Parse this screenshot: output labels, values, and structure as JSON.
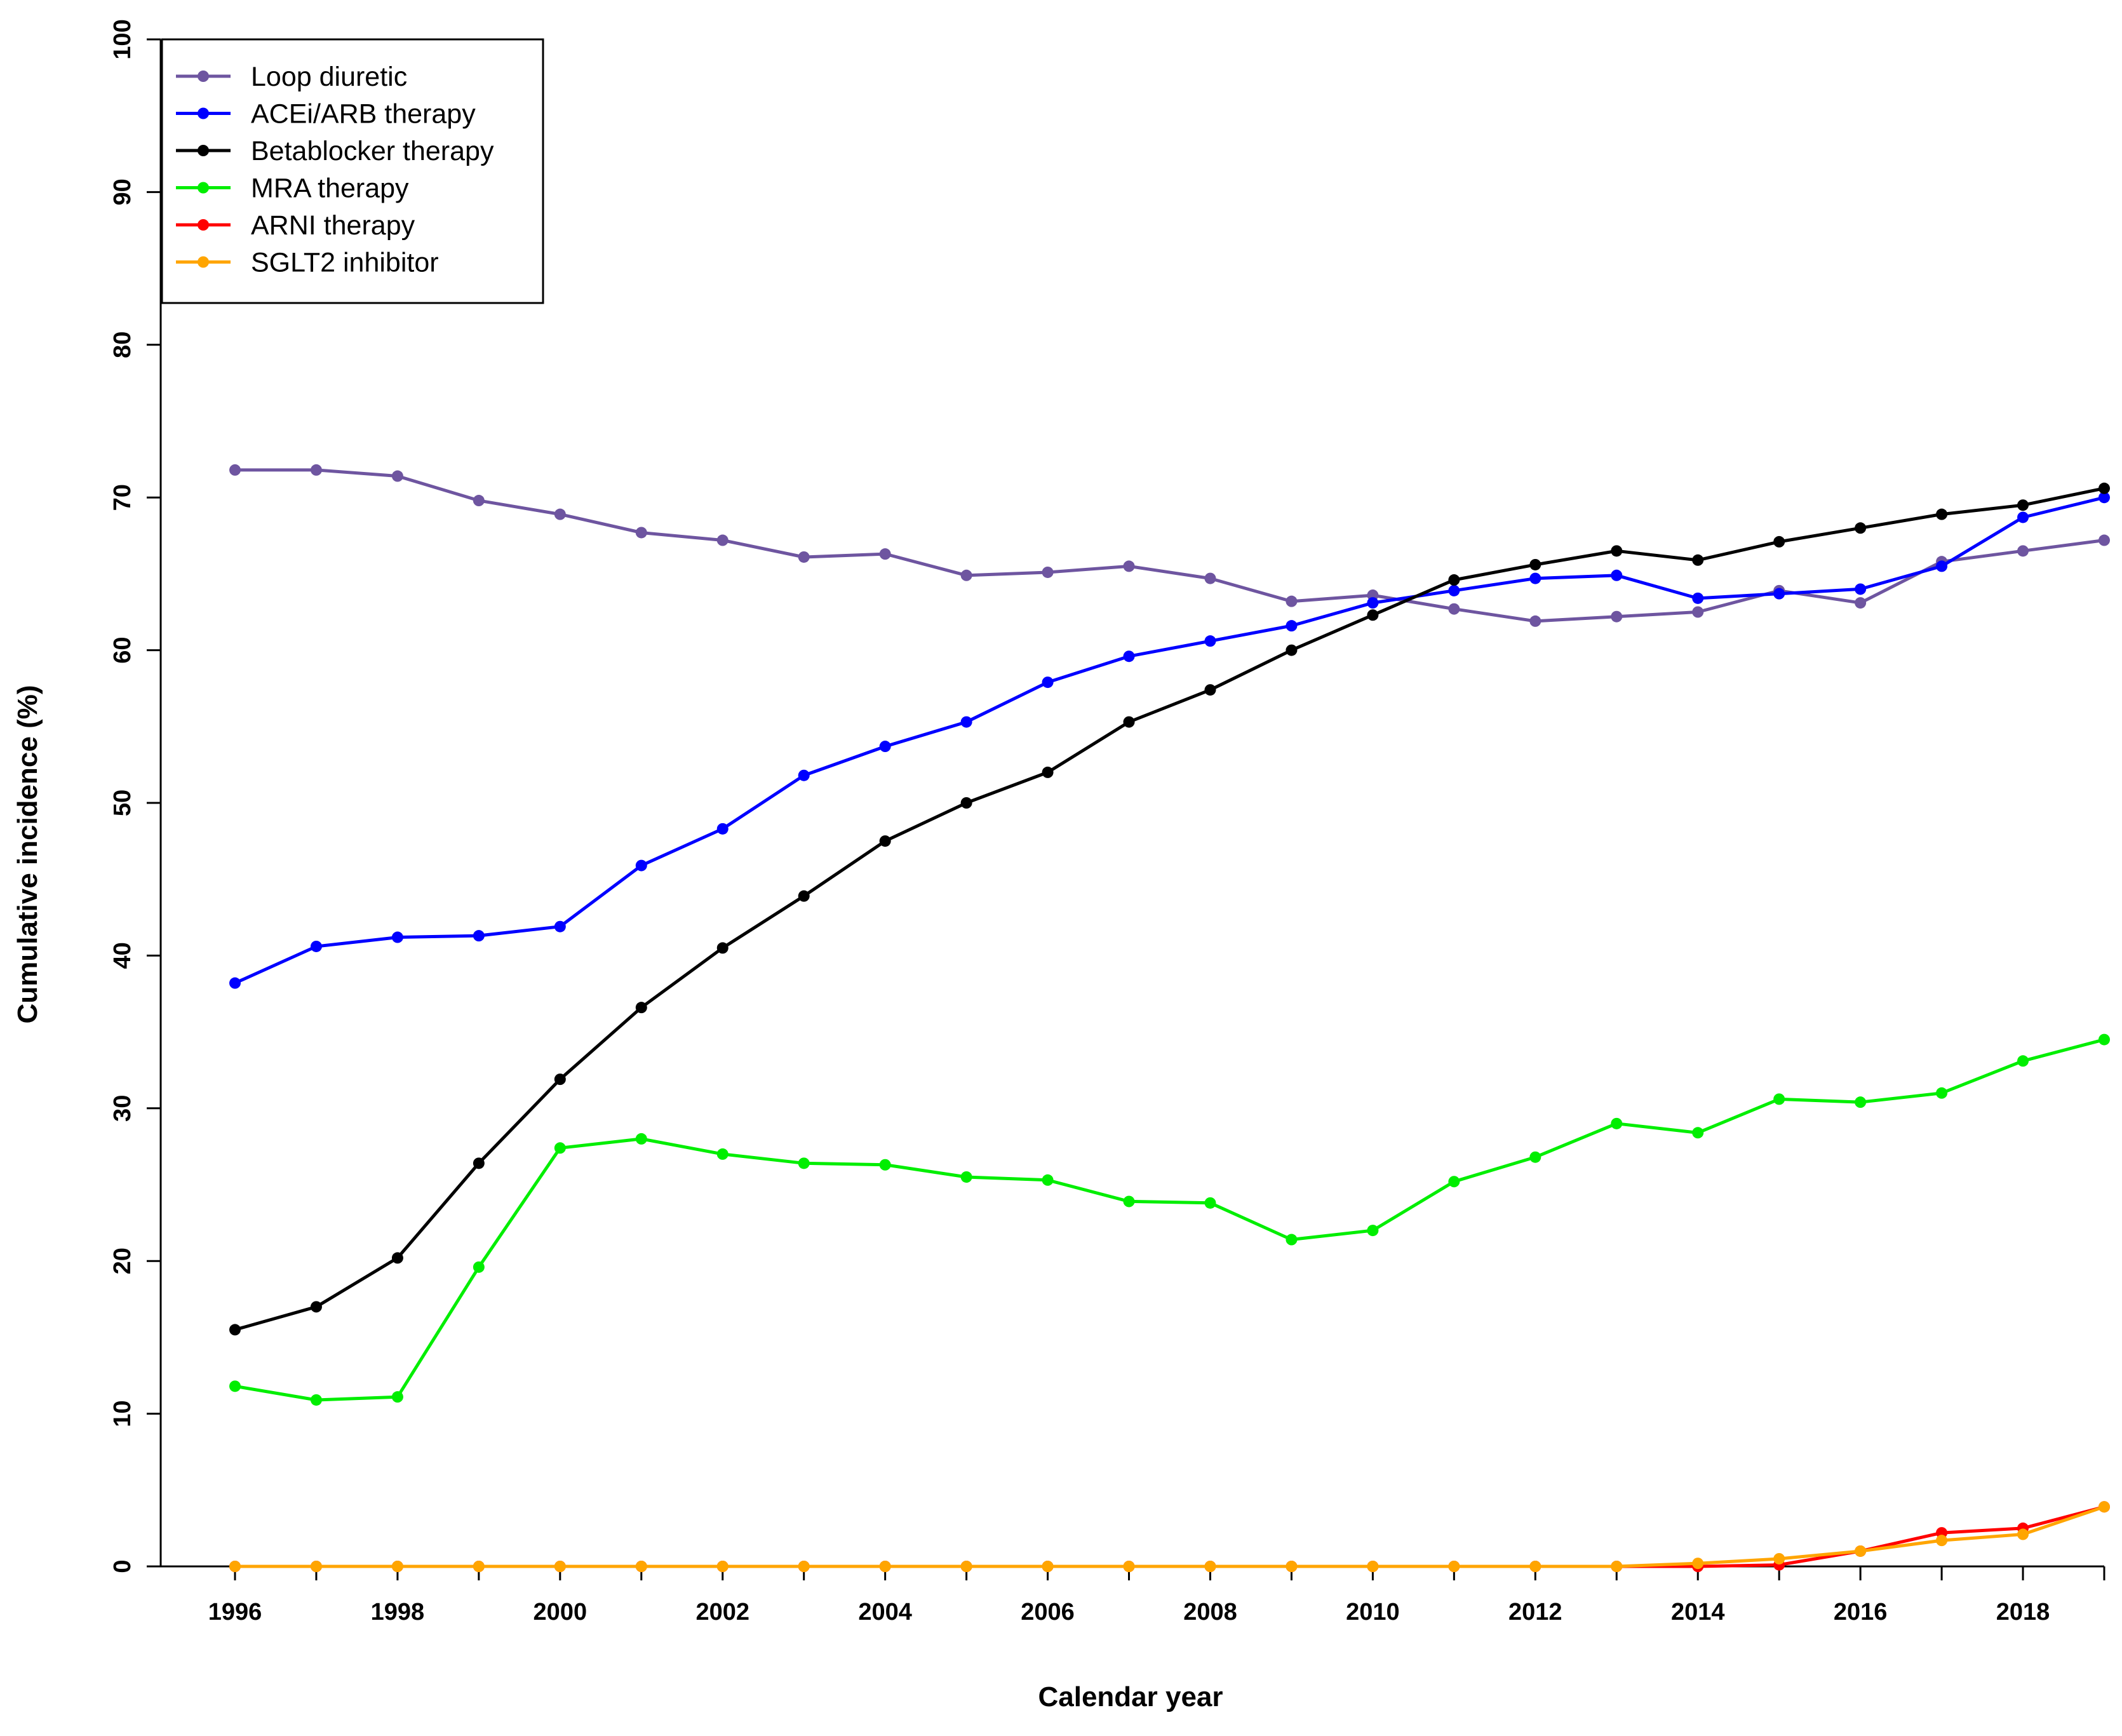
{
  "chart_data": {
    "type": "line",
    "title": "",
    "xlabel": "Calendar year",
    "ylabel": "Cumulative incidence (%)",
    "xlim": [
      1996,
      2019
    ],
    "ylim": [
      0,
      100
    ],
    "x_ticks": [
      1996,
      1998,
      2000,
      2002,
      2004,
      2006,
      2008,
      2010,
      2012,
      2014,
      2016,
      2018
    ],
    "y_ticks": [
      0,
      10,
      20,
      30,
      40,
      50,
      60,
      70,
      80,
      90,
      100
    ],
    "grid": false,
    "legend_position": "top-left",
    "x": [
      1996,
      1997,
      1998,
      1999,
      2000,
      2001,
      2002,
      2003,
      2004,
      2005,
      2006,
      2007,
      2008,
      2009,
      2010,
      2011,
      2012,
      2013,
      2014,
      2015,
      2016,
      2017,
      2018,
      2019
    ],
    "series": [
      {
        "name": "Loop diuretic",
        "color": "#6e55a0",
        "values": [
          71.8,
          71.8,
          71.4,
          69.8,
          68.9,
          67.7,
          67.2,
          66.1,
          66.3,
          64.9,
          65.1,
          65.5,
          64.7,
          63.2,
          63.6,
          62.7,
          61.9,
          62.2,
          62.5,
          63.9,
          63.1,
          65.8,
          66.5,
          67.2
        ]
      },
      {
        "name": "ACEi/ARB therapy",
        "color": "#0000ff",
        "values": [
          38.2,
          40.6,
          41.2,
          41.3,
          41.9,
          45.9,
          48.3,
          51.8,
          53.7,
          55.3,
          57.9,
          59.6,
          60.6,
          61.6,
          63.1,
          63.9,
          64.7,
          64.9,
          63.4,
          63.7,
          64.0,
          65.5,
          68.7,
          70.0
        ]
      },
      {
        "name": "Betablocker therapy",
        "color": "#000000",
        "values": [
          15.5,
          17.0,
          20.2,
          26.4,
          31.9,
          36.6,
          40.5,
          43.9,
          47.5,
          50.0,
          52.0,
          55.3,
          57.4,
          60.0,
          62.3,
          64.6,
          65.6,
          66.5,
          65.9,
          67.1,
          68.0,
          68.9,
          69.5,
          70.6
        ]
      },
      {
        "name": "MRA therapy",
        "color": "#00ee00",
        "values": [
          11.8,
          10.9,
          11.1,
          19.6,
          27.4,
          28.0,
          27.0,
          26.4,
          26.3,
          25.5,
          25.3,
          23.9,
          23.8,
          21.4,
          22.0,
          25.2,
          26.8,
          29.0,
          28.4,
          30.6,
          30.4,
          31.0,
          33.1,
          34.5
        ]
      },
      {
        "name": "ARNI therapy",
        "color": "#ff0000",
        "values": [
          0,
          0,
          0,
          0,
          0,
          0,
          0,
          0,
          0,
          0,
          0,
          0,
          0,
          0,
          0,
          0,
          0,
          0,
          0,
          0.1,
          1.0,
          2.2,
          2.5,
          3.9
        ]
      },
      {
        "name": "SGLT2 inhibitor",
        "color": "#ffa500",
        "values": [
          0,
          0,
          0,
          0,
          0,
          0,
          0,
          0,
          0,
          0,
          0,
          0,
          0,
          0,
          0,
          0,
          0,
          0,
          0.2,
          0.5,
          1.0,
          1.7,
          2.1,
          3.9
        ]
      }
    ]
  }
}
